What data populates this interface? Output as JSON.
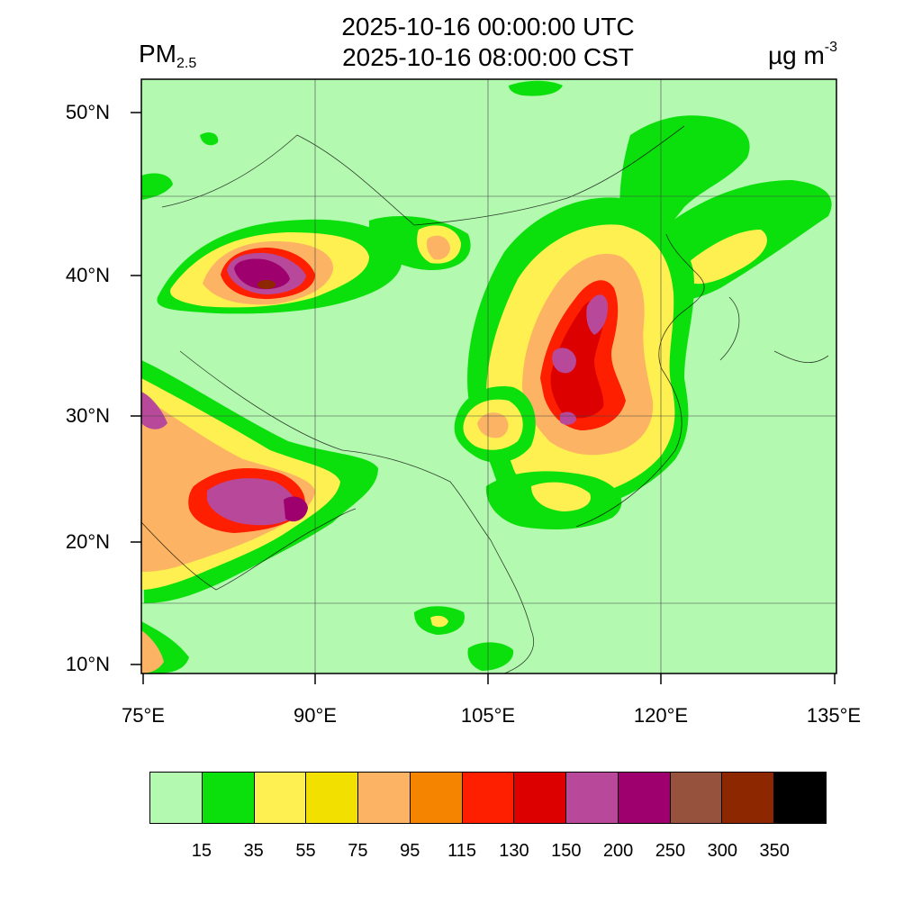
{
  "title": {
    "line1": "2025-10-16 00:00:00 UTC",
    "line2": "2025-10-16 08:00:00 CST"
  },
  "variable": {
    "name": "PM",
    "subscript": "2.5"
  },
  "units": {
    "base": "µg m",
    "exponent": "-3"
  },
  "axes": {
    "lat_ticks": [
      "50°N",
      "40°N",
      "30°N",
      "20°N",
      "10°N"
    ],
    "lon_ticks": [
      "75°E",
      "90°E",
      "105°E",
      "120°E",
      "135°E"
    ]
  },
  "colorbar": {
    "colors": [
      "#b4f9b0",
      "#0ce00c",
      "#fef050",
      "#f2e100",
      "#fcb464",
      "#f58500",
      "#fe1e00",
      "#dc0000",
      "#b8489a",
      "#9e006e",
      "#96523c",
      "#8c2700",
      "#000000"
    ],
    "labels": [
      "15",
      "35",
      "55",
      "75",
      "95",
      "115",
      "130",
      "150",
      "200",
      "250",
      "300",
      "350"
    ]
  },
  "map_colors": {
    "background": "#b4f9b0",
    "level_35": "#0ce00c",
    "level_55": "#fef050",
    "level_75": "#f2e100",
    "level_95": "#fcb464",
    "level_115": "#f58500",
    "level_130": "#fe1e00",
    "level_150": "#dc0000",
    "level_200": "#b8489a",
    "level_250": "#9e006e",
    "level_300": "#96523c",
    "level_350": "#8c2700"
  }
}
